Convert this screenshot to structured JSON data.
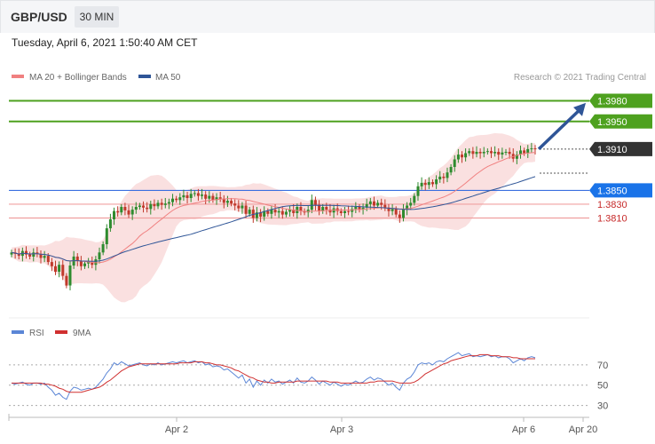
{
  "header": {
    "symbol": "GBP/USD",
    "timeframe": "30 MIN"
  },
  "datetime": "Tuesday, April 6, 2021 1:50:40 AM CET",
  "legend": {
    "ma20": "MA 20 + Bollinger Bands",
    "ma50": "MA 50",
    "copyright": "Research © 2021 Trading Central",
    "rsi": "RSI",
    "ma9": "9MA"
  },
  "colors": {
    "bollinger": "#f5c6c6",
    "ma20": "#f08080",
    "ma50": "#2f5597",
    "resistance": "#4ea11f",
    "support_line": "#f0a0a0",
    "pivot": "#3a6fe0",
    "arrow": "#2f5597",
    "candle_up": "#2e8b2e",
    "candle_down": "#c0392b",
    "rsi": "#5b86d6",
    "rsi_ma": "#d03030"
  },
  "chart_data": [
    {
      "type": "candlestick",
      "series_name": "GBP/USD 30 MIN",
      "x_ticks": [
        "Apr 2",
        "Apr 3",
        "Apr 6",
        "Apr 20"
      ],
      "ylim": [
        1.3665,
        1.4
      ],
      "levels": [
        {
          "value": 1.398,
          "label": "1.3980",
          "kind": "resistance"
        },
        {
          "value": 1.395,
          "label": "1.3950",
          "kind": "resistance"
        },
        {
          "value": 1.391,
          "label": "1.3910",
          "kind": "last-price"
        },
        {
          "value": 1.385,
          "label": "1.3850",
          "kind": "pivot"
        },
        {
          "value": 1.383,
          "label": "1.3830",
          "kind": "support"
        },
        {
          "value": 1.381,
          "label": "1.3810",
          "kind": "support"
        }
      ],
      "close": [
        1.376,
        1.3758,
        1.3755,
        1.3762,
        1.3757,
        1.3754,
        1.376,
        1.3758,
        1.3752,
        1.3755,
        1.3746,
        1.374,
        1.3732,
        1.3742,
        1.3726,
        1.3712,
        1.3741,
        1.3754,
        1.3748,
        1.374,
        1.3744,
        1.3746,
        1.3742,
        1.375,
        1.376,
        1.3772,
        1.3795,
        1.3808,
        1.382,
        1.3818,
        1.3826,
        1.3821,
        1.3815,
        1.3822,
        1.3826,
        1.3828,
        1.3825,
        1.3823,
        1.383,
        1.3827,
        1.3832,
        1.3829,
        1.3831,
        1.3833,
        1.3838,
        1.3836,
        1.384,
        1.3843,
        1.3839,
        1.3845,
        1.3846,
        1.3842,
        1.3844,
        1.3838,
        1.3842,
        1.3836,
        1.384,
        1.3838,
        1.3832,
        1.3835,
        1.3831,
        1.3828,
        1.3824,
        1.3828,
        1.3816,
        1.3822,
        1.381,
        1.3818,
        1.3812,
        1.382,
        1.3816,
        1.3822,
        1.3818,
        1.382,
        1.3815,
        1.3819,
        1.3822,
        1.3817,
        1.3826,
        1.382,
        1.3818,
        1.3822,
        1.3836,
        1.3829,
        1.382,
        1.3826,
        1.3822,
        1.3818,
        1.3824,
        1.382,
        1.3817,
        1.382,
        1.3819,
        1.3823,
        1.3826,
        1.3822,
        1.3825,
        1.383,
        1.3834,
        1.3828,
        1.3832,
        1.3829,
        1.3825,
        1.382,
        1.3823,
        1.3815,
        1.381,
        1.3822,
        1.3828,
        1.3832,
        1.3842,
        1.3856,
        1.3861,
        1.3858,
        1.3862,
        1.3859,
        1.3866,
        1.387,
        1.3868,
        1.3876,
        1.3884,
        1.3895,
        1.3902,
        1.3898,
        1.3904,
        1.3907,
        1.3903,
        1.3906,
        1.3904,
        1.3906,
        1.3907,
        1.3904,
        1.3906,
        1.3902,
        1.3905,
        1.3906,
        1.3903,
        1.3896,
        1.3902,
        1.3908,
        1.3904,
        1.391,
        1.3911,
        1.391
      ]
    },
    {
      "type": "line",
      "series_name": "RSI",
      "ylim": [
        20,
        90
      ],
      "y_ticks": [
        70,
        50,
        30
      ],
      "rsi": [
        52,
        51,
        52,
        53,
        51,
        50,
        52,
        52,
        51,
        52,
        48,
        45,
        40,
        42,
        38,
        36,
        44,
        48,
        47,
        45,
        46,
        47,
        46,
        48,
        52,
        56,
        62,
        66,
        72,
        70,
        73,
        71,
        69,
        70,
        71,
        72,
        70,
        69,
        71,
        70,
        72,
        70,
        71,
        72,
        73,
        72,
        73,
        74,
        72,
        73,
        74,
        72,
        73,
        70,
        71,
        68,
        69,
        68,
        65,
        66,
        63,
        60,
        57,
        60,
        52,
        56,
        48,
        54,
        50,
        55,
        52,
        56,
        53,
        54,
        51,
        53,
        55,
        52,
        57,
        53,
        52,
        54,
        58,
        55,
        51,
        54,
        52,
        50,
        53,
        51,
        49,
        51,
        50,
        52,
        54,
        52,
        53,
        56,
        58,
        55,
        57,
        56,
        53,
        50,
        52,
        48,
        45,
        52,
        56,
        58,
        63,
        70,
        72,
        71,
        72,
        70,
        73,
        74,
        73,
        76,
        78,
        80,
        82,
        79,
        80,
        81,
        78,
        79,
        78,
        79,
        80,
        78,
        79,
        77,
        78,
        78,
        76,
        72,
        74,
        76,
        74,
        77,
        78,
        77
      ],
      "ma9": [
        52,
        52,
        52,
        52,
        52,
        52,
        52,
        52,
        52,
        51,
        51,
        50,
        49,
        47,
        46,
        44,
        43,
        43,
        43,
        43,
        44,
        45,
        46,
        47,
        48,
        50,
        53,
        55,
        58,
        61,
        64,
        66,
        68,
        69,
        70,
        71,
        71,
        71,
        71,
        71,
        71,
        71,
        71,
        71,
        71,
        71,
        72,
        72,
        72,
        72,
        73,
        73,
        73,
        72,
        72,
        71,
        70,
        70,
        69,
        68,
        67,
        65,
        64,
        62,
        60,
        58,
        57,
        55,
        54,
        53,
        53,
        52,
        52,
        53,
        53,
        53,
        53,
        53,
        54,
        54,
        54,
        54,
        54,
        54,
        54,
        54,
        54,
        53,
        53,
        53,
        52,
        52,
        52,
        52,
        52,
        52,
        52,
        52,
        53,
        53,
        54,
        54,
        54,
        54,
        54,
        53,
        52,
        52,
        52,
        52,
        53,
        55,
        58,
        61,
        63,
        65,
        67,
        69,
        71,
        72,
        74,
        75,
        76,
        77,
        78,
        79,
        79,
        79,
        80,
        80,
        80,
        79,
        79,
        79,
        78,
        78,
        78,
        77,
        77,
        76,
        76,
        76,
        76,
        76
      ]
    }
  ]
}
